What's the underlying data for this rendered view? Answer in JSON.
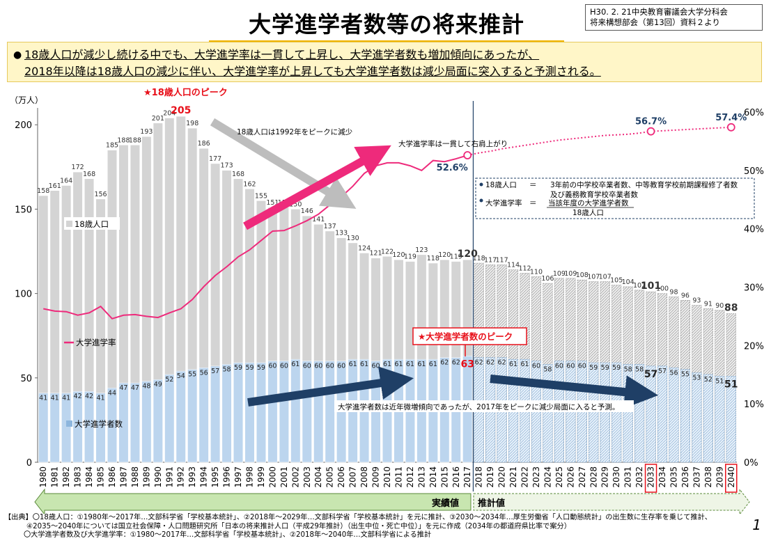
{
  "title": "大学進学者数等の将来推計",
  "source_box": {
    "line1": "H30. 2. 21中央教育審議会大学分科会",
    "line2": "将来構想部会（第13回）資料２より"
  },
  "summary": {
    "bullet": "●",
    "line1": "18歳人口が減少し続ける中でも、大学進学率は一貫して上昇し、大学進学者数も増加傾向にあったが、",
    "line2": "2018年以降は18歳人口の減少に伴い、大学進学率が上昇しても大学進学者数は減少局面に突入すると予測される。"
  },
  "annotations": {
    "peak_label": "★18歳人口のピーク",
    "peak_note": "18歳人口は1992年をピークに減少",
    "rate_note": "大学進学率は一貫して右肩上がり",
    "entrants_peak_label": "★大学進学者数のピーク",
    "entrants_note": "大学進学者数は近年微増傾向であったが、2017年をピークに減少局面に入ると予測。",
    "actual_label": "実績値",
    "forecast_label": "推計値"
  },
  "definitions": {
    "pop_term": "18歳人口",
    "pop_eq": "＝",
    "pop_def1": "3年前の中学校卒業者数、中等教育学校前期課程修了者数",
    "pop_def2": "及び義務教育学校卒業者数",
    "rate_term": "大学進学率",
    "rate_eq": "＝",
    "rate_num": "当該年度の大学進学者数",
    "rate_den": "18歳人口"
  },
  "footer": {
    "line1": "【出典】〇18歳人口：①1980年～2017年…文部科学省「学校基本統計」、②2018年～2029年…文部科学省「学校基本統計」を元に推計、③2030～2034年…厚生労働省「人口動態統計」の出生数に生存率を乗じて推計、",
    "line2": "④2035～2040年については国立社会保障・人口問題研究所「日本の将来推計人口（平成29年推計）（出生中位・死亡中位）」を元に作成（2034年の都道府県比率で案分）",
    "line3": "〇大学進学者数及び大学進学率：①1980～2017年…文部科学省「学校基本統計」、②2018年～2040年…文部科学省による推計",
    "page": "1"
  },
  "colors": {
    "population": "#d4d4d4",
    "entrants": "#bcd5ee",
    "rate": "#ee2a7b",
    "red": "#e8101a",
    "navy": "#1f3f66"
  },
  "chart_data": {
    "type": "bar",
    "ylabel_left": "（万人）",
    "ylim_left": [
      0,
      210
    ],
    "yticks_left": [
      "0",
      "50",
      "100",
      "150",
      "200"
    ],
    "ylim_right": [
      0,
      0.6
    ],
    "yticks_right": [
      "0%",
      "10%",
      "20%",
      "30%",
      "40%",
      "50%",
      "60%"
    ],
    "categories": [
      "1980",
      "1981",
      "1982",
      "1983",
      "1984",
      "1985",
      "1986",
      "1987",
      "1988",
      "1989",
      "1990",
      "1991",
      "1992",
      "1993",
      "1994",
      "1995",
      "1996",
      "1997",
      "1998",
      "1999",
      "2000",
      "2001",
      "2002",
      "2003",
      "2004",
      "2005",
      "2006",
      "2007",
      "2008",
      "2009",
      "2010",
      "2011",
      "2012",
      "2013",
      "2014",
      "2015",
      "2016",
      "2017",
      "2018",
      "2019",
      "2020",
      "2021",
      "2022",
      "2023",
      "2024",
      "2025",
      "2026",
      "2027",
      "2028",
      "2029",
      "2030",
      "2031",
      "2032",
      "2033",
      "2034",
      "2035",
      "2036",
      "2037",
      "2038",
      "2039",
      "2040"
    ],
    "actual_until": "2017",
    "series": [
      {
        "name": "18歳人口",
        "type": "bar",
        "values": [
          158,
          161,
          164,
          172,
          168,
          156,
          185,
          188,
          188,
          193,
          201,
          204,
          205,
          198,
          186,
          177,
          173,
          168,
          162,
          155,
          151,
          151,
          150,
          146,
          141,
          137,
          133,
          130,
          124,
          121,
          122,
          120,
          119,
          123,
          118,
          120,
          119,
          120,
          118,
          117,
          117,
          114,
          112,
          110,
          106,
          109,
          109,
          108,
          107,
          107,
          105,
          104,
          102,
          101,
          100,
          98,
          96,
          93,
          91,
          90,
          88
        ]
      },
      {
        "name": "大学進学者数",
        "type": "bar",
        "values": [
          41,
          41,
          41,
          42,
          42,
          41,
          44,
          47,
          47,
          48,
          49,
          52,
          54,
          55,
          56,
          57,
          58,
          59,
          59,
          59,
          60,
          60,
          61,
          60,
          60,
          60,
          60,
          61,
          61,
          60,
          61,
          61,
          61,
          61,
          61,
          62,
          62,
          63,
          62,
          62,
          62,
          61,
          61,
          60,
          58,
          60,
          60,
          60,
          59,
          59,
          59,
          58,
          58,
          57,
          57,
          56,
          55,
          53,
          52,
          51,
          51
        ]
      },
      {
        "name": "大学進学率",
        "type": "line",
        "values": [
          0.263,
          0.259,
          0.258,
          0.252,
          0.256,
          0.267,
          0.246,
          0.252,
          0.253,
          0.25,
          0.248,
          0.256,
          0.263,
          0.279,
          0.301,
          0.32,
          0.335,
          0.352,
          0.364,
          0.38,
          0.396,
          0.397,
          0.405,
          0.414,
          0.425,
          0.441,
          0.455,
          0.473,
          0.495,
          0.508,
          0.513,
          0.513,
          0.508,
          0.5,
          0.517,
          0.515,
          0.52,
          0.526,
          0.53,
          0.533,
          0.537,
          0.54,
          0.543,
          0.546,
          0.549,
          0.552,
          0.554,
          0.556,
          0.558,
          0.56,
          0.561,
          0.562,
          0.564,
          0.567,
          0.568,
          0.569,
          0.57,
          0.571,
          0.572,
          0.573,
          0.574
        ]
      }
    ],
    "rate_labels": [
      {
        "year": "2017",
        "text": "52.6%"
      },
      {
        "year": "2033",
        "text": "56.7%"
      },
      {
        "year": "2040",
        "text": "57.4%"
      }
    ],
    "population_peak": {
      "year": "1992",
      "value": "205"
    },
    "entrants_peak": {
      "year": "2017",
      "value": "63"
    },
    "highlight_years": [
      "2033",
      "2040"
    ],
    "legend": [
      "18歳人口",
      "大学進学率",
      "大学進学者数"
    ]
  }
}
